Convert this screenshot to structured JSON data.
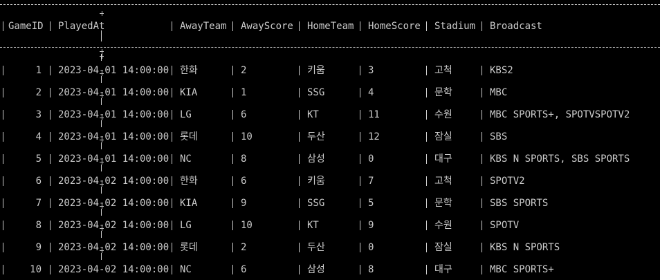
{
  "columns": [
    "GameID",
    "PlayedAt",
    "AwayTeam",
    "AwayScore",
    "HomeTeam",
    "HomeScore",
    "Stadium",
    "Broadcast"
  ],
  "rows": [
    {
      "id": "1",
      "played": "2023-04-01 14:00:00",
      "away": "한화",
      "away_score": "2",
      "home": "키움",
      "home_score": "3",
      "stadium": "고척",
      "broadcast": "KBS2"
    },
    {
      "id": "2",
      "played": "2023-04-01 14:00:00",
      "away": "KIA",
      "away_score": "1",
      "home": "SSG",
      "home_score": "4",
      "stadium": "문학",
      "broadcast": "MBC"
    },
    {
      "id": "3",
      "played": "2023-04-01 14:00:00",
      "away": "LG",
      "away_score": "6",
      "home": "KT",
      "home_score": "11",
      "stadium": "수원",
      "broadcast": "MBC SPORTS+, SPOTVSPOTV2"
    },
    {
      "id": "4",
      "played": "2023-04-01 14:00:00",
      "away": "롯데",
      "away_score": "10",
      "home": "두산",
      "home_score": "12",
      "stadium": "잠실",
      "broadcast": "SBS"
    },
    {
      "id": "5",
      "played": "2023-04-01 14:00:00",
      "away": "NC",
      "away_score": "8",
      "home": "삼성",
      "home_score": "0",
      "stadium": "대구",
      "broadcast": "KBS N SPORTS, SBS SPORTS"
    },
    {
      "id": "6",
      "played": "2023-04-02 14:00:00",
      "away": "한화",
      "away_score": "6",
      "home": "키움",
      "home_score": "7",
      "stadium": "고척",
      "broadcast": "SPOTV2"
    },
    {
      "id": "7",
      "played": "2023-04-02 14:00:00",
      "away": "KIA",
      "away_score": "9",
      "home": "SSG",
      "home_score": "5",
      "stadium": "문학",
      "broadcast": "SBS SPORTS"
    },
    {
      "id": "8",
      "played": "2023-04-02 14:00:00",
      "away": "LG",
      "away_score": "10",
      "home": "KT",
      "home_score": "9",
      "stadium": "수원",
      "broadcast": "SPOTV"
    },
    {
      "id": "9",
      "played": "2023-04-02 14:00:00",
      "away": "롯데",
      "away_score": "2",
      "home": "두산",
      "home_score": "0",
      "stadium": "잠실",
      "broadcast": "KBS N SPORTS"
    },
    {
      "id": "10",
      "played": "2023-04-02 14:00:00",
      "away": "NC",
      "away_score": "6",
      "home": "삼성",
      "home_score": "8",
      "stadium": "대구",
      "broadcast": "MBC SPORTS+"
    }
  ]
}
